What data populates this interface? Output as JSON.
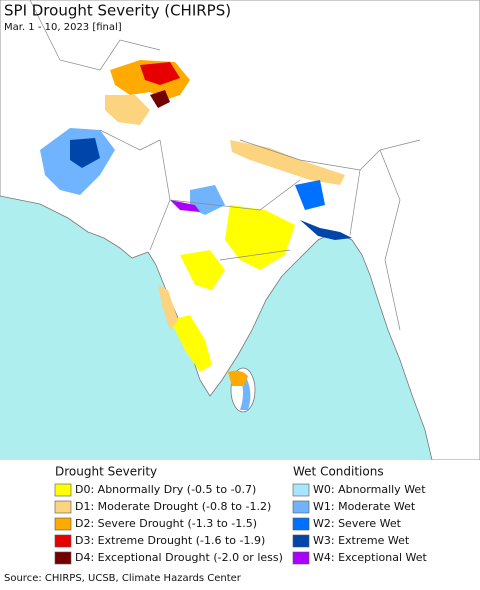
{
  "header": {
    "title": "SPI Drought Severity (CHIRPS)",
    "subtitle": "Mar. 1 - 10, 2023 [final]"
  },
  "legend": {
    "drought": {
      "title": "Drought Severity",
      "items": [
        {
          "label": "D0: Abnormally Dry (-0.5 to -0.7)",
          "color": "#ffff00"
        },
        {
          "label": "D1: Moderate Drought (-0.8 to -1.2)",
          "color": "#fcd37f"
        },
        {
          "label": "D2: Severe Drought (-1.3 to -1.5)",
          "color": "#ffaa00"
        },
        {
          "label": "D3: Extreme Drought (-1.6 to -1.9)",
          "color": "#e60000"
        },
        {
          "label": "D4: Exceptional Drought (-2.0 or less)",
          "color": "#730000"
        }
      ]
    },
    "wet": {
      "title": "Wet Conditions",
      "items": [
        {
          "label": "W0: Abnormally Wet",
          "color": "#aae5ff"
        },
        {
          "label": "W1: Moderate Wet",
          "color": "#70b4ff"
        },
        {
          "label": "W2: Severe Wet",
          "color": "#0070ff"
        },
        {
          "label": "W3: Extreme Wet",
          "color": "#0046aa"
        },
        {
          "label": "W4: Exceptional Wet",
          "color": "#aa00ff"
        }
      ]
    }
  },
  "source": "Source: CHIRPS, UCSB, Climate Hazards Center"
}
